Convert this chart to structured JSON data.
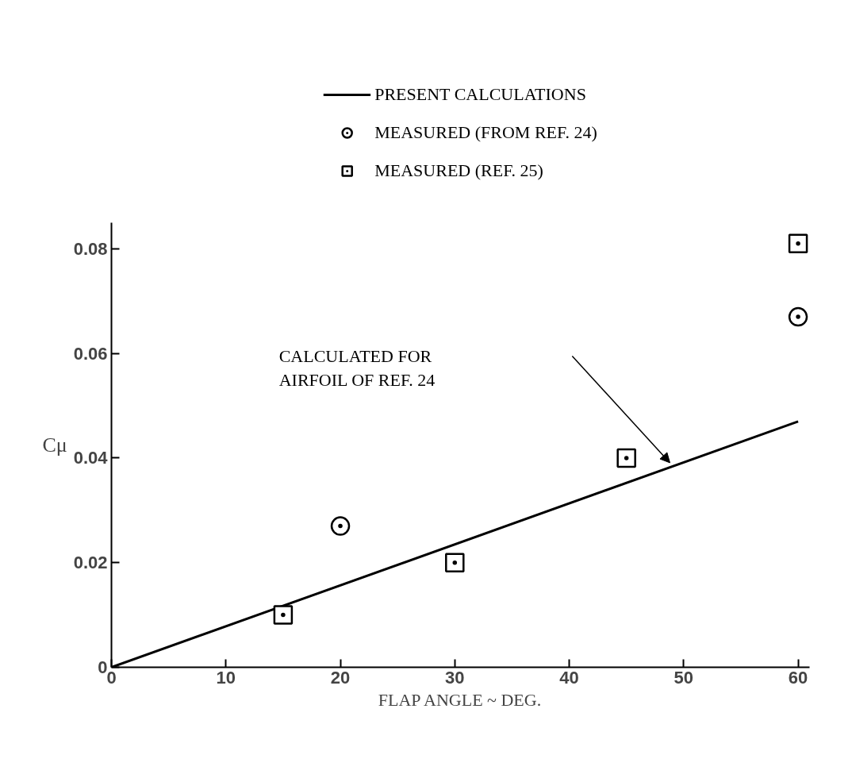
{
  "chart_data": {
    "type": "scatter",
    "xlabel": "FLAP ANGLE ~ DEG.",
    "ylabel": "Cμ",
    "xlim": [
      0,
      61
    ],
    "ylim": [
      0,
      0.085
    ],
    "xticks": [
      0,
      10,
      20,
      30,
      40,
      50,
      60
    ],
    "yticks": [
      0,
      0.02,
      0.04,
      0.06,
      0.08
    ],
    "grid": false,
    "legend": "top",
    "series": [
      {
        "name": "PRESENT CALCULATIONS",
        "type": "line",
        "color": "#000000",
        "line_style": "solid",
        "x": [
          0,
          60
        ],
        "values": [
          0,
          0.047
        ]
      },
      {
        "name": "MEASURED (FROM REF. 24)",
        "color": "#000000",
        "marker": "circle",
        "x": [
          20,
          60
        ],
        "values": [
          0.027,
          0.067
        ]
      },
      {
        "name": "MEASURED (REF. 25)",
        "color": "#000000",
        "marker": "square",
        "x": [
          15,
          30,
          45,
          60
        ],
        "values": [
          0.01,
          0.02,
          0.04,
          0.081
        ]
      }
    ],
    "annotations": [
      "CALCULATED FOR\nAIRFOIL OF REF. 24"
    ]
  }
}
